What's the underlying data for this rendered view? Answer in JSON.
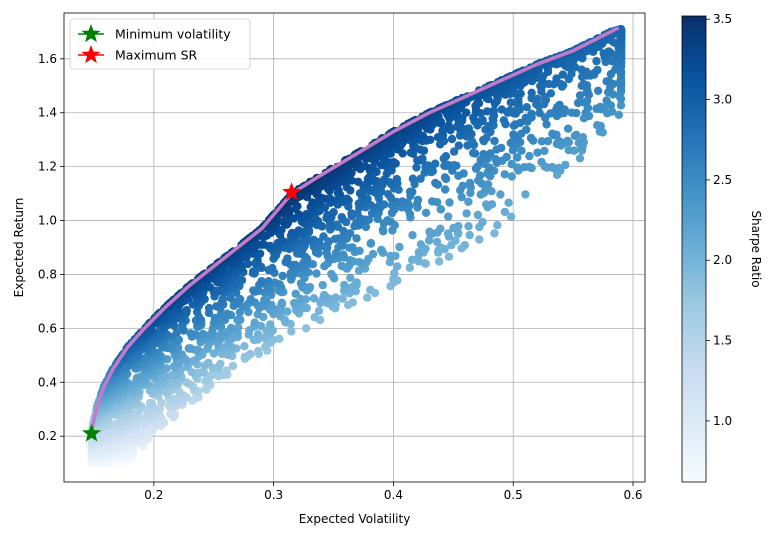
{
  "chart_data": {
    "type": "scatter",
    "title": "",
    "xlabel": "Expected Volatility",
    "ylabel": "Expected Return",
    "xlim": [
      0.125,
      0.61
    ],
    "ylim": [
      0.03,
      1.77
    ],
    "xticks": [
      0.2,
      0.3,
      0.4,
      0.5,
      0.6
    ],
    "yticks": [
      0.2,
      0.4,
      0.6,
      0.8,
      1.0,
      1.2,
      1.4,
      1.6
    ],
    "xtick_labels": [
      "0.2",
      "0.3",
      "0.4",
      "0.5",
      "0.6"
    ],
    "ytick_labels": [
      "0.2",
      "0.4",
      "0.6",
      "0.8",
      "1.0",
      "1.2",
      "1.4",
      "1.6"
    ],
    "grid": true,
    "legend_position": "top-left",
    "colorbar": {
      "label": "Sharpe Ratio",
      "range": [
        0.62,
        3.52
      ],
      "ticks": [
        1.0,
        1.5,
        2.0,
        2.5,
        3.0,
        3.5
      ],
      "tick_labels": [
        "1.0",
        "1.5",
        "2.0",
        "2.5",
        "3.0",
        "3.5"
      ],
      "colormap": [
        "#f7fbff",
        "#deebf7",
        "#c6dbef",
        "#9ecae1",
        "#6baed6",
        "#4292c6",
        "#2171b5",
        "#08519c",
        "#08306b"
      ]
    },
    "frontier": {
      "color": "#c57ac7",
      "x": [
        0.148,
        0.152,
        0.158,
        0.166,
        0.178,
        0.192,
        0.21,
        0.23,
        0.25,
        0.27,
        0.29,
        0.315,
        0.34,
        0.37,
        0.4,
        0.43,
        0.46,
        0.49,
        0.52,
        0.55,
        0.588
      ],
      "y": [
        0.22,
        0.3,
        0.38,
        0.45,
        0.53,
        0.6,
        0.68,
        0.76,
        0.83,
        0.9,
        0.97,
        1.1,
        1.17,
        1.25,
        1.33,
        1.4,
        1.46,
        1.52,
        1.58,
        1.63,
        1.715
      ]
    },
    "minimum_volatility": {
      "label": "Minimum volatility",
      "x": 0.148,
      "y": 0.21,
      "color": "#008000"
    },
    "maximum_sr": {
      "label": "Maximum SR",
      "x": 0.315,
      "y": 1.105,
      "color": "#ff0000"
    },
    "portfolios": {
      "count": 3000,
      "vol_range": [
        0.145,
        0.59
      ],
      "return_range": [
        0.1,
        1.71
      ],
      "sharpe_range": [
        0.62,
        3.52
      ]
    }
  }
}
